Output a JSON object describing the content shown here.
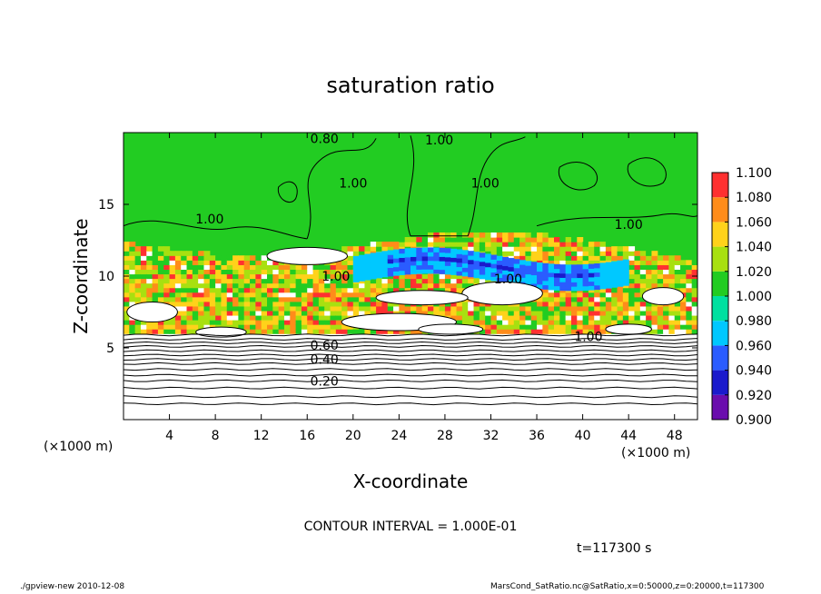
{
  "chart_data": {
    "type": "heatmap",
    "title": "saturation ratio",
    "xlabel": "X-coordinate",
    "ylabel": "Z-coordinate",
    "x_unit": "(×1000 m)",
    "y_unit": "(×1000 m)",
    "xlim": [
      0,
      50
    ],
    "ylim": [
      0,
      20
    ],
    "x_ticks": [
      4,
      8,
      12,
      16,
      20,
      24,
      28,
      32,
      36,
      40,
      44,
      48
    ],
    "y_ticks": [
      5,
      10,
      15
    ],
    "colorbar": {
      "levels": [
        0.9,
        0.92,
        0.94,
        0.96,
        0.98,
        1.0,
        1.02,
        1.04,
        1.06,
        1.08,
        1.1
      ],
      "labels": [
        "0.900",
        "0.920",
        "0.940",
        "0.960",
        "0.980",
        "1.000",
        "1.020",
        "1.040",
        "1.060",
        "1.080",
        "1.100"
      ],
      "colors": [
        "#6a0dad",
        "#1a1acc",
        "#2a5cff",
        "#00c8ff",
        "#00e0a0",
        "#22cc22",
        "#a8e010",
        "#ffd21a",
        "#ff8c1a",
        "#ff3030",
        "#ff8888"
      ]
    },
    "background_color": "#22cc22",
    "cloud_bands": [
      {
        "name": "supersaturated layer",
        "x": [
          0,
          50
        ],
        "z": [
          6,
          12.5
        ],
        "value_range": [
          1.02,
          1.1
        ]
      },
      {
        "name": "subsaturated layer",
        "x": [
          20,
          44
        ],
        "z": [
          9.5,
          11.5
        ],
        "value_range": [
          0.9,
          0.98
        ]
      }
    ],
    "contour_labels": [
      {
        "text": "0.80",
        "x": 17.5,
        "z": 19.6
      },
      {
        "text": "1.00",
        "x": 27.5,
        "z": 19.5
      },
      {
        "text": "1.00",
        "x": 20,
        "z": 16.5
      },
      {
        "text": "1.00",
        "x": 31.5,
        "z": 16.5
      },
      {
        "text": "1.00",
        "x": 7.5,
        "z": 14
      },
      {
        "text": "1.00",
        "x": 44,
        "z": 13.6
      },
      {
        "text": "1.00",
        "x": 18.5,
        "z": 10
      },
      {
        "text": "1.00",
        "x": 33.5,
        "z": 9.8
      },
      {
        "text": "1.00",
        "x": 40.5,
        "z": 5.8
      },
      {
        "text": "0.60",
        "x": 17.5,
        "z": 5.2
      },
      {
        "text": "0.40",
        "x": 17.5,
        "z": 4.2
      },
      {
        "text": "0.20",
        "x": 17.5,
        "z": 2.7
      }
    ],
    "contour_interval_text": "CONTOUR INTERVAL = 1.000E-01",
    "time_text": "t=117300  s"
  },
  "footer": {
    "left": "./gpview-new   2010-12-08",
    "right": "MarsCond_SatRatio.nc@SatRatio,x=0:50000,z=0:20000,t=117300"
  }
}
